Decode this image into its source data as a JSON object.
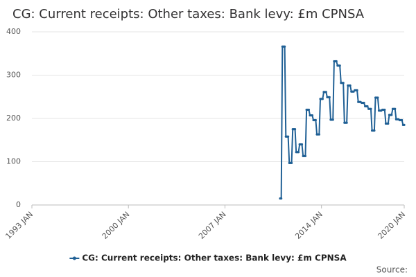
{
  "chart_data": {
    "type": "line",
    "title": "CG: Current receipts: Other taxes: Bank levy: £m CPNSA",
    "source": "Source:",
    "x": [
      "2011 JAN",
      "2011 FEB",
      "2011 MAR",
      "2011 APR",
      "2011 MAY",
      "2011 JUN",
      "2011 JUL",
      "2011 AUG",
      "2011 SEP",
      "2011 OCT",
      "2011 NOV",
      "2011 DEC",
      "2012 JAN",
      "2012 FEB",
      "2012 MAR",
      "2012 APR",
      "2012 MAY",
      "2012 JUN",
      "2012 JUL",
      "2012 AUG",
      "2012 SEP",
      "2012 OCT",
      "2012 NOV",
      "2012 DEC",
      "2013 JAN",
      "2013 FEB",
      "2013 MAR",
      "2013 APR",
      "2013 MAY",
      "2013 JUN",
      "2013 JUL",
      "2013 AUG",
      "2013 SEP",
      "2013 OCT",
      "2013 NOV",
      "2013 DEC",
      "2014 JAN",
      "2014 FEB",
      "2014 MAR",
      "2014 APR",
      "2014 MAY",
      "2014 JUN",
      "2014 JUL",
      "2014 AUG",
      "2014 SEP",
      "2014 OCT",
      "2014 NOV",
      "2014 DEC",
      "2015 JAN",
      "2015 FEB",
      "2015 MAR",
      "2015 APR",
      "2015 MAY",
      "2015 JUN",
      "2015 JUL",
      "2015 AUG",
      "2015 SEP",
      "2015 OCT",
      "2015 NOV",
      "2015 DEC",
      "2016 JAN",
      "2016 FEB",
      "2016 MAR",
      "2016 APR",
      "2016 MAY",
      "2016 JUN",
      "2016 JUL",
      "2016 AUG",
      "2016 SEP",
      "2016 OCT",
      "2016 NOV",
      "2016 DEC",
      "2017 JAN",
      "2017 FEB",
      "2017 MAR",
      "2017 APR",
      "2017 MAY",
      "2017 JUN",
      "2017 JUL",
      "2017 AUG",
      "2017 SEP",
      "2017 OCT",
      "2017 NOV",
      "2017 DEC",
      "2018 JAN",
      "2018 FEB",
      "2018 MAR",
      "2018 APR",
      "2018 MAY",
      "2018 JUN",
      "2018 JUL",
      "2018 AUG",
      "2018 SEP",
      "2018 OCT",
      "2018 NOV",
      "2018 DEC",
      "2019 JAN",
      "2019 FEB",
      "2019 MAR",
      "2019 APR",
      "2019 MAY",
      "2019 JUN",
      "2019 JUL",
      "2019 AUG",
      "2019 SEP",
      "2019 OCT",
      "2019 NOV",
      "2019 DEC",
      "2020 JAN"
    ],
    "series": [
      {
        "name": "CG: Current receipts: Other taxes: Bank levy: £m CPNSA",
        "color": "#206095",
        "values": [
          15,
          15,
          366,
          366,
          366,
          158,
          158,
          158,
          97,
          97,
          97,
          175,
          175,
          175,
          122,
          122,
          122,
          140,
          140,
          140,
          113,
          113,
          113,
          220,
          220,
          220,
          207,
          207,
          207,
          196,
          196,
          196,
          163,
          163,
          163,
          245,
          245,
          245,
          261,
          261,
          261,
          249,
          249,
          249,
          197,
          197,
          197,
          332,
          332,
          332,
          322,
          322,
          322,
          282,
          282,
          282,
          190,
          190,
          190,
          276,
          276,
          276,
          262,
          262,
          262,
          265,
          265,
          265,
          238,
          238,
          238,
          236,
          236,
          236,
          228,
          228,
          228,
          222,
          222,
          222,
          172,
          172,
          172,
          248,
          248,
          248,
          218,
          218,
          218,
          220,
          220,
          220,
          188,
          188,
          188,
          208,
          208,
          208,
          222,
          222,
          222,
          198,
          198,
          198,
          196,
          196,
          196,
          185,
          185
        ]
      }
    ],
    "xlim": [
      "1993 JAN",
      "2020 JAN"
    ],
    "xticks": [
      "1993 JAN",
      "2000 JAN",
      "2007 JAN",
      "2014 JAN",
      "2020 JAN"
    ],
    "ylim": [
      0,
      400
    ],
    "yticks": [
      0,
      100,
      200,
      300,
      400
    ],
    "grid": true,
    "legend": "bottom"
  }
}
